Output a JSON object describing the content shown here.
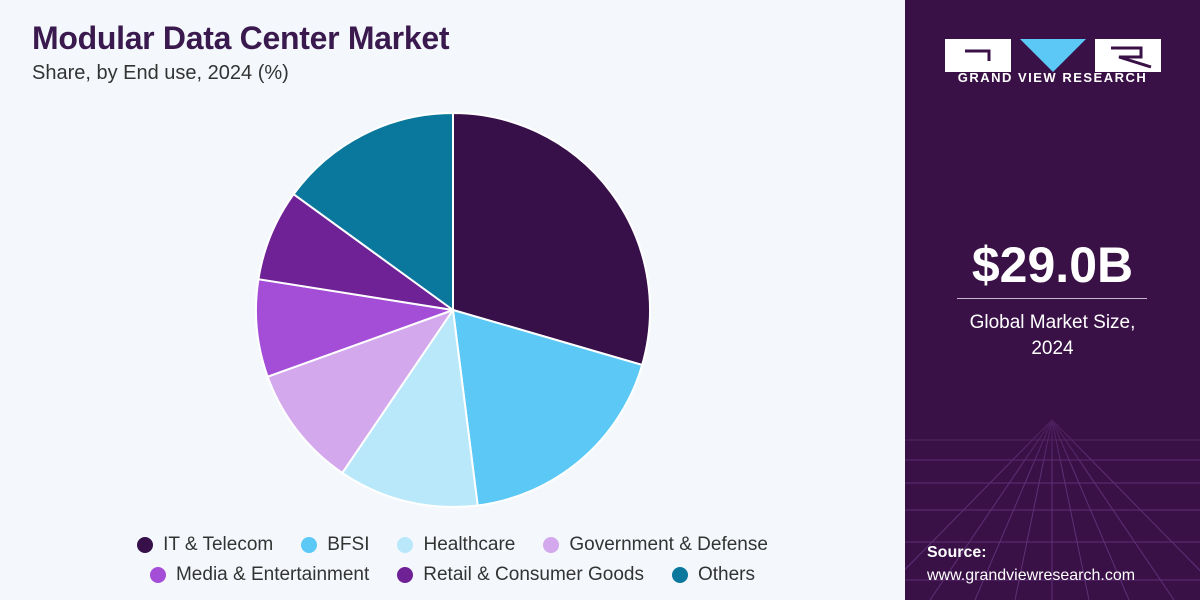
{
  "chart_data": {
    "type": "pie",
    "title": "Modular Data Center Market",
    "subtitle": "Share, by End use, 2024 (%)",
    "slices": [
      {
        "label": "IT & Telecom",
        "value": 29.5,
        "color": "#37104a"
      },
      {
        "label": "BFSI",
        "value": 18.5,
        "color": "#5bc8f5"
      },
      {
        "label": "Healthcare",
        "value": 11.5,
        "color": "#b8e8fa"
      },
      {
        "label": "Government & Defense",
        "value": 10.0,
        "color": "#d3a8ec"
      },
      {
        "label": "Media & Entertainment",
        "value": 8.0,
        "color": "#a44ed8"
      },
      {
        "label": "Retail & Consumer Goods",
        "value": 7.5,
        "color": "#6f2196"
      },
      {
        "label": "Others",
        "value": 15.0,
        "color": "#0a779c"
      }
    ],
    "start_angle_deg": 0,
    "direction": "clockwise",
    "legend_position": "bottom"
  },
  "sidebar": {
    "brand": "GRAND VIEW RESEARCH",
    "stat_value": "$29.0B",
    "stat_label": "Global Market Size, 2024",
    "source_label": "Source:",
    "source_url": "www.grandviewresearch.com"
  },
  "colors": {
    "sidebar_bg": "#3a1147",
    "title": "#3a1a4e",
    "logo_accent": "#5bc8f5"
  }
}
